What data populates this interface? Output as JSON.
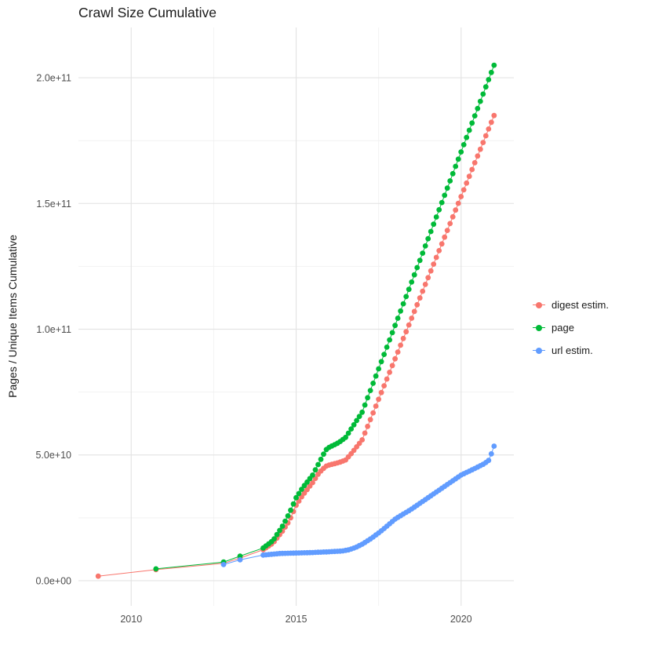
{
  "chart_data": {
    "type": "scatter",
    "title": "Crawl Size Cumulative",
    "xlabel": "",
    "ylabel": "Pages / Unique Items Cumulative",
    "xlim": [
      2008.4,
      2021.6
    ],
    "ylim": [
      -10000000000.0,
      220000000000.0
    ],
    "grid": true,
    "legend_position": "right",
    "x_major_ticks": [
      {
        "value": 2010,
        "label": "2010"
      },
      {
        "value": 2015,
        "label": "2015"
      },
      {
        "value": 2020,
        "label": "2020"
      }
    ],
    "x_minor_ticks": [
      2012.5,
      2017.5
    ],
    "y_major_ticks": [
      {
        "value": 0,
        "label": "0.0e+00"
      },
      {
        "value": 50000000000.0,
        "label": "5.0e+10"
      },
      {
        "value": 100000000000.0,
        "label": "1.0e+11"
      },
      {
        "value": 150000000000.0,
        "label": "1.5e+11"
      },
      {
        "value": 200000000000.0,
        "label": "2.0e+11"
      }
    ],
    "y_minor_ticks": [
      25000000000.0,
      75000000000.0,
      125000000000.0,
      175000000000.0
    ],
    "colors": {
      "grid_major": "#e4e4e4",
      "grid_minor": "#f2f2f2",
      "axis_text": "#4d4d4d",
      "title_text": "#1a1a1a"
    },
    "sampling": {
      "early_times": [
        2009.0,
        2010.75,
        2012.8,
        2013.3
      ],
      "monthly_from": 2014.0,
      "monthly_to": 2021.0,
      "points_per_year": 12
    },
    "series": [
      {
        "name": "digest estim.",
        "color": "#F8766D",
        "start": 2009.0,
        "knots": [
          [
            2009.0,
            1800000000.0
          ],
          [
            2010.75,
            4400000000.0
          ],
          [
            2012.8,
            6900000000.0
          ],
          [
            2013.3,
            9000000000.0
          ],
          [
            2014.0,
            12300000000.0
          ],
          [
            2014.3,
            15000000000.0
          ],
          [
            2014.6,
            20000000000.0
          ],
          [
            2014.8,
            24000000000.0
          ],
          [
            2015.0,
            30000000000.0
          ],
          [
            2015.2,
            34000000000.0
          ],
          [
            2015.5,
            39000000000.0
          ],
          [
            2015.7,
            43000000000.0
          ],
          [
            2015.9,
            45500000000.0
          ],
          [
            2016.0,
            46000000000.0
          ],
          [
            2016.3,
            47000000000.0
          ],
          [
            2016.5,
            48000000000.0
          ],
          [
            2016.7,
            51000000000.0
          ],
          [
            2017.0,
            56000000000.0
          ],
          [
            2018.0,
            88250000000.0
          ],
          [
            2019.0,
            120500000000.0
          ],
          [
            2020.0,
            152750000000.0
          ],
          [
            2021.0,
            185000000000.0
          ]
        ]
      },
      {
        "name": "page",
        "color": "#00BA38",
        "start": 2010.75,
        "knots": [
          [
            2010.75,
            4700000000.0
          ],
          [
            2012.8,
            7400000000.0
          ],
          [
            2013.3,
            9800000000.0
          ],
          [
            2014.0,
            13000000000.0
          ],
          [
            2014.3,
            16000000000.0
          ],
          [
            2014.6,
            22000000000.0
          ],
          [
            2014.8,
            27000000000.0
          ],
          [
            2015.0,
            33000000000.0
          ],
          [
            2015.2,
            37000000000.0
          ],
          [
            2015.5,
            42000000000.0
          ],
          [
            2015.7,
            47000000000.0
          ],
          [
            2015.9,
            52000000000.0
          ],
          [
            2016.0,
            53000000000.0
          ],
          [
            2016.3,
            55000000000.0
          ],
          [
            2016.5,
            57000000000.0
          ],
          [
            2016.7,
            61000000000.0
          ],
          [
            2017.0,
            67000000000.0
          ],
          [
            2018.0,
            101500000000.0
          ],
          [
            2019.0,
            136000000000.0
          ],
          [
            2020.0,
            170500000000.0
          ],
          [
            2021.0,
            205000000000.0
          ]
        ]
      },
      {
        "name": "url estim.",
        "color": "#619CFF",
        "start": 2012.8,
        "knots": [
          [
            2012.8,
            6400000000.0
          ],
          [
            2013.3,
            8300000000.0
          ],
          [
            2014.0,
            10200000000.0
          ],
          [
            2014.5,
            10800000000.0
          ],
          [
            2015.0,
            11000000000.0
          ],
          [
            2015.5,
            11200000000.0
          ],
          [
            2016.0,
            11500000000.0
          ],
          [
            2016.4,
            11800000000.0
          ],
          [
            2016.6,
            12300000000.0
          ],
          [
            2016.8,
            13200000000.0
          ],
          [
            2017.0,
            14500000000.0
          ],
          [
            2017.3,
            17000000000.0
          ],
          [
            2017.6,
            20000000000.0
          ],
          [
            2018.0,
            24500000000.0
          ],
          [
            2018.5,
            28500000000.0
          ],
          [
            2019.0,
            33000000000.0
          ],
          [
            2019.5,
            37500000000.0
          ],
          [
            2020.0,
            42000000000.0
          ],
          [
            2020.4,
            44500000000.0
          ],
          [
            2020.7,
            46500000000.0
          ],
          [
            2020.85,
            48000000000.0
          ],
          [
            2021.0,
            53500000000.0
          ]
        ]
      }
    ]
  }
}
